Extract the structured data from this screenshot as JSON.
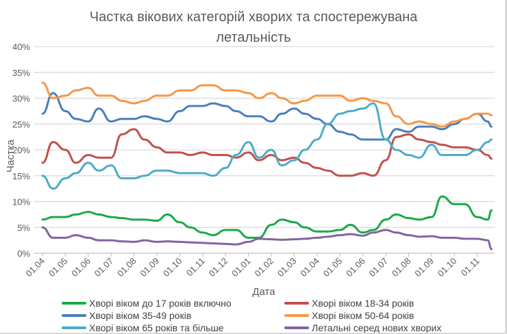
{
  "chart_data": {
    "type": "line",
    "title": "Частка вікових категорій хворих та спостережувана летальність",
    "title_lines": [
      "Частка вікових категорій хворих та спостережувана",
      "летальність"
    ],
    "xlabel": "Дата",
    "ylabel": "Частка",
    "ylim": [
      0,
      40
    ],
    "yticks": [
      "0%",
      "5%",
      "10%",
      "15%",
      "20%",
      "25%",
      "30%",
      "35%",
      "40%"
    ],
    "xticks": [
      "01.04",
      "01.05",
      "01.06",
      "01.07",
      "01.08",
      "01.09",
      "01.10",
      "01.11",
      "01.12",
      "01.01",
      "01.02",
      "01.03",
      "01.04",
      "01.05",
      "01.06",
      "01.07",
      "01.08",
      "01.09",
      "01.10",
      "01.11"
    ],
    "grid": true,
    "legend": "bottom",
    "x": [
      "01.04",
      "15.04",
      "01.05",
      "15.05",
      "01.06",
      "15.06",
      "01.07",
      "15.07",
      "01.08",
      "15.08",
      "01.09",
      "15.09",
      "01.10",
      "15.10",
      "01.11",
      "15.11",
      "01.12",
      "15.12",
      "01.01",
      "15.01",
      "01.02",
      "15.02",
      "01.03",
      "15.03",
      "01.04",
      "15.04",
      "01.05",
      "15.05",
      "01.06",
      "15.06",
      "01.07",
      "15.07",
      "01.08",
      "15.08",
      "01.09",
      "15.09",
      "01.10",
      "15.10",
      "01.11",
      "15.11",
      "20.11"
    ],
    "series": [
      {
        "name": "Хворі віком до 17 років включно",
        "color": "#1aa84a",
        "values": [
          6.5,
          7,
          7,
          7.5,
          8,
          7.5,
          7,
          6.8,
          6.5,
          6.5,
          6.3,
          7.5,
          6,
          5,
          4,
          3.5,
          4.5,
          4.5,
          3,
          3,
          5.5,
          6.5,
          6,
          5,
          4.2,
          4.2,
          4.5,
          5.5,
          4,
          4.5,
          6.5,
          7.5,
          6.8,
          6.5,
          7,
          11,
          9.5,
          9.5,
          7,
          6.5,
          8.3
        ]
      },
      {
        "name": "Хворі віком 18-34 років",
        "color": "#c0504d",
        "values": [
          17.5,
          21.5,
          20,
          17.5,
          19,
          18.5,
          18.5,
          23,
          24,
          22,
          20.5,
          19.5,
          19.5,
          19,
          19.5,
          19,
          19,
          18.5,
          19.5,
          18,
          19,
          18,
          18.5,
          17.5,
          16.5,
          16,
          15,
          15,
          15.5,
          15,
          18,
          22.5,
          23,
          22,
          21.5,
          21,
          20.5,
          20.5,
          20,
          19,
          18.3
        ]
      },
      {
        "name": "Хворі віком 35-49 років",
        "color": "#4a7ebb",
        "values": [
          27,
          31,
          27.5,
          26,
          25.5,
          28,
          25.5,
          26,
          26,
          26.5,
          26,
          25.5,
          27.5,
          28.5,
          28.5,
          29,
          28.5,
          27.5,
          26.5,
          26.5,
          25.5,
          27,
          28,
          27,
          26,
          25,
          23.5,
          23,
          22,
          22,
          22,
          24,
          23.5,
          24.5,
          24.5,
          24,
          25,
          26,
          27,
          25.5,
          24.5
        ]
      },
      {
        "name": "Хворі віком 50-64 років",
        "color": "#f79646",
        "values": [
          33,
          30,
          30.5,
          31.5,
          32,
          30.5,
          30.5,
          29.5,
          29,
          29.5,
          30.5,
          30.5,
          31.5,
          31.5,
          32.5,
          32.5,
          31.5,
          31.5,
          31,
          30,
          31,
          30,
          29,
          29.5,
          30.5,
          30.5,
          30.5,
          29.5,
          30,
          29.5,
          29,
          26.5,
          25,
          25.5,
          25,
          24.5,
          25.5,
          26,
          27,
          27,
          26.7
        ]
      },
      {
        "name": "Хворі віком 65 років та більше",
        "color": "#4bacc6",
        "values": [
          15,
          12.5,
          14.5,
          15.5,
          17.5,
          16,
          17,
          14.5,
          14.5,
          15,
          16,
          16,
          15.5,
          15.5,
          15.5,
          15,
          16.5,
          19,
          21.5,
          18.5,
          20,
          17,
          18,
          20,
          22,
          25,
          27,
          27.5,
          28,
          29,
          22,
          20,
          19,
          18.5,
          21,
          19,
          19,
          19,
          20,
          21.5,
          22
        ]
      },
      {
        "name": "Летальні серед нових хворих",
        "color": "#8064a2",
        "values": [
          5,
          3,
          3,
          3.5,
          3,
          2.5,
          2.5,
          2.3,
          2.2,
          2.5,
          2.2,
          2.3,
          2.2,
          2.1,
          2,
          1.9,
          1.8,
          1.7,
          2.2,
          2.8,
          2.7,
          2.6,
          2.7,
          2.8,
          3,
          3.2,
          3.5,
          3.7,
          3.4,
          4,
          4.5,
          4,
          3.5,
          3.2,
          3.3,
          3,
          3,
          2.8,
          2.8,
          2.5,
          0.8
        ]
      }
    ]
  }
}
